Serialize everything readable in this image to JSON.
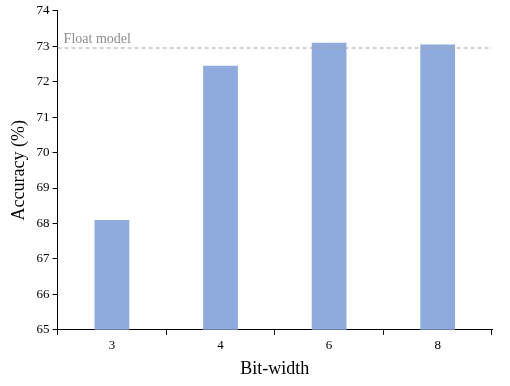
{
  "chart_data": {
    "type": "bar",
    "x_label": "Bit-width",
    "y_label": "Accuracy (%)",
    "categories": [
      "3",
      "4",
      "6",
      "8"
    ],
    "values": [
      68.1,
      72.45,
      73.1,
      73.05
    ],
    "color": "#8faadc",
    "ylim": [
      65,
      74
    ],
    "yticks": [
      65,
      66,
      67,
      68,
      69,
      70,
      71,
      72,
      73,
      74
    ],
    "grid": false,
    "reference_line": {
      "label": "Float model",
      "value": 72.95,
      "line_style": "dashed"
    }
  }
}
